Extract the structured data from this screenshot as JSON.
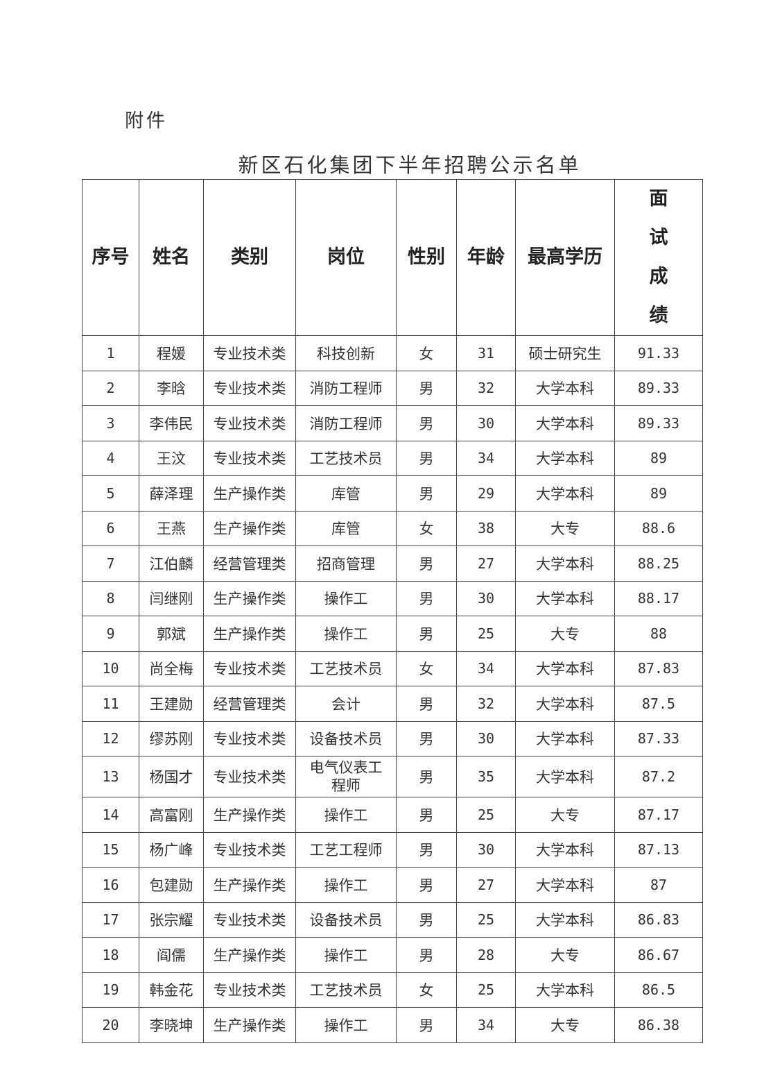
{
  "attachment_label": "附件",
  "title": "新区石化集团下半年招聘公示名单",
  "table": {
    "headers": [
      "序号",
      "姓名",
      "类别",
      "岗位",
      "性别",
      "年龄",
      "最高学历",
      "面试成绩"
    ],
    "rows": [
      [
        "1",
        "程媛",
        "专业技术类",
        "科技创新",
        "女",
        "31",
        "硕士研究生",
        "91.33"
      ],
      [
        "2",
        "李晗",
        "专业技术类",
        "消防工程师",
        "男",
        "32",
        "大学本科",
        "89.33"
      ],
      [
        "3",
        "李伟民",
        "专业技术类",
        "消防工程师",
        "男",
        "30",
        "大学本科",
        "89.33"
      ],
      [
        "4",
        "王汶",
        "专业技术类",
        "工艺技术员",
        "男",
        "34",
        "大学本科",
        "89"
      ],
      [
        "5",
        "薛泽理",
        "生产操作类",
        "库管",
        "男",
        "29",
        "大学本科",
        "89"
      ],
      [
        "6",
        "王燕",
        "生产操作类",
        "库管",
        "女",
        "38",
        "大专",
        "88.6"
      ],
      [
        "7",
        "江伯麟",
        "经营管理类",
        "招商管理",
        "男",
        "27",
        "大学本科",
        "88.25"
      ],
      [
        "8",
        "闫继刚",
        "生产操作类",
        "操作工",
        "男",
        "30",
        "大学本科",
        "88.17"
      ],
      [
        "9",
        "郭斌",
        "生产操作类",
        "操作工",
        "男",
        "25",
        "大专",
        "88"
      ],
      [
        "10",
        "尚全梅",
        "专业技术类",
        "工艺技术员",
        "女",
        "34",
        "大学本科",
        "87.83"
      ],
      [
        "11",
        "王建勋",
        "经营管理类",
        "会计",
        "男",
        "32",
        "大学本科",
        "87.5"
      ],
      [
        "12",
        "缪苏刚",
        "专业技术类",
        "设备技术员",
        "男",
        "30",
        "大学本科",
        "87.33"
      ],
      [
        "13",
        "杨国才",
        "专业技术类",
        "电气仪表工程师",
        "男",
        "35",
        "大学本科",
        "87.2"
      ],
      [
        "14",
        "高富刚",
        "生产操作类",
        "操作工",
        "男",
        "25",
        "大专",
        "87.17"
      ],
      [
        "15",
        "杨广峰",
        "专业技术类",
        "工艺工程师",
        "男",
        "30",
        "大学本科",
        "87.13"
      ],
      [
        "16",
        "包建勋",
        "生产操作类",
        "操作工",
        "男",
        "27",
        "大学本科",
        "87"
      ],
      [
        "17",
        "张宗耀",
        "专业技术类",
        "设备技术员",
        "男",
        "25",
        "大学本科",
        "86.83"
      ],
      [
        "18",
        "阎儒",
        "生产操作类",
        "操作工",
        "男",
        "28",
        "大专",
        "86.67"
      ],
      [
        "19",
        "韩金花",
        "专业技术类",
        "工艺技术员",
        "女",
        "25",
        "大学本科",
        "86.5"
      ],
      [
        "20",
        "李晓坤",
        "生产操作类",
        "操作工",
        "男",
        "34",
        "大专",
        "86.38"
      ]
    ]
  }
}
